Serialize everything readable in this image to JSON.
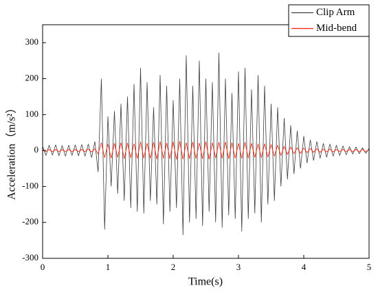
{
  "chart_data": {
    "type": "line",
    "xlabel": "Time(s)",
    "ylabel": "Acceleration（m/s²）",
    "x": [
      0,
      0.05,
      0.1,
      0.15,
      0.2,
      0.25,
      0.3,
      0.35,
      0.4,
      0.45,
      0.5,
      0.55,
      0.6,
      0.65,
      0.7,
      0.75,
      0.8,
      0.85,
      0.9,
      0.95,
      1,
      1.05,
      1.1,
      1.15,
      1.2,
      1.25,
      1.3,
      1.35,
      1.4,
      1.45,
      1.5,
      1.55,
      1.6,
      1.65,
      1.7,
      1.75,
      1.8,
      1.85,
      1.9,
      1.95,
      2,
      2.05,
      2.1,
      2.15,
      2.2,
      2.25,
      2.3,
      2.35,
      2.4,
      2.45,
      2.5,
      2.55,
      2.6,
      2.65,
      2.7,
      2.75,
      2.8,
      2.85,
      2.9,
      2.95,
      3,
      3.05,
      3.1,
      3.15,
      3.2,
      3.25,
      3.3,
      3.35,
      3.4,
      3.45,
      3.5,
      3.55,
      3.6,
      3.65,
      3.7,
      3.75,
      3.8,
      3.85,
      3.9,
      3.95,
      4,
      4.05,
      4.1,
      4.15,
      4.2,
      4.25,
      4.3,
      4.35,
      4.4,
      4.45,
      4.5,
      4.55,
      4.6,
      4.65,
      4.7,
      4.75,
      4.8,
      4.85,
      4.9,
      4.95,
      5
    ],
    "series": [
      {
        "name": "Clip Arm",
        "color": "#3c3c3c",
        "values": [
          12,
          -14,
          15,
          -13,
          16,
          -15,
          14,
          -16,
          15,
          -14,
          16,
          -15,
          17,
          -16,
          18,
          -20,
          25,
          -60,
          200,
          -220,
          95,
          -100,
          110,
          -120,
          130,
          -140,
          150,
          -160,
          185,
          -170,
          230,
          -175,
          190,
          -140,
          120,
          -150,
          210,
          -205,
          180,
          -170,
          140,
          -160,
          200,
          -235,
          265,
          -200,
          180,
          -190,
          250,
          -210,
          200,
          -170,
          190,
          -200,
          272,
          -215,
          200,
          -180,
          160,
          -190,
          220,
          -225,
          230,
          -190,
          170,
          -175,
          210,
          -200,
          180,
          -150,
          130,
          -140,
          120,
          -100,
          90,
          -80,
          70,
          -65,
          55,
          -50,
          40,
          -35,
          30,
          -28,
          25,
          -22,
          20,
          -19,
          18,
          -16,
          15,
          -14,
          13,
          -12,
          11,
          -10,
          10,
          -9,
          8,
          -8,
          6
        ]
      },
      {
        "name": "Mid-bend",
        "color": "#ff1a00",
        "values": [
          3,
          -3,
          3,
          -3,
          3,
          -3,
          3,
          -3,
          3,
          -3,
          3,
          -3,
          3,
          -3,
          4,
          -4,
          5,
          -10,
          22,
          -20,
          18,
          -21,
          20,
          -19,
          22,
          -23,
          21,
          -20,
          19,
          -22,
          24,
          -21,
          20,
          -22,
          23,
          -24,
          25,
          -22,
          21,
          -23,
          24,
          -25,
          26,
          -24,
          22,
          -23,
          24,
          -22,
          21,
          -23,
          25,
          -24,
          22,
          -21,
          23,
          -22,
          24,
          -23,
          22,
          -21,
          20,
          -22,
          23,
          -21,
          20,
          -19,
          18,
          -20,
          19,
          -18,
          17,
          -16,
          15,
          -14,
          12,
          -11,
          10,
          -9,
          8,
          -8,
          7,
          -6,
          6,
          -5,
          5,
          -5,
          4,
          -4,
          4,
          -4,
          3,
          -3,
          3,
          -3,
          3,
          -3,
          3,
          -3,
          3,
          -3,
          2
        ]
      }
    ],
    "xlim": [
      0,
      5
    ],
    "xticks": [
      0,
      1,
      2,
      3,
      4,
      5
    ],
    "ylim": [
      -300,
      350
    ],
    "yticks": [
      -300,
      -200,
      -100,
      0,
      100,
      200,
      300
    ],
    "legend": "upper right",
    "grid": false
  }
}
